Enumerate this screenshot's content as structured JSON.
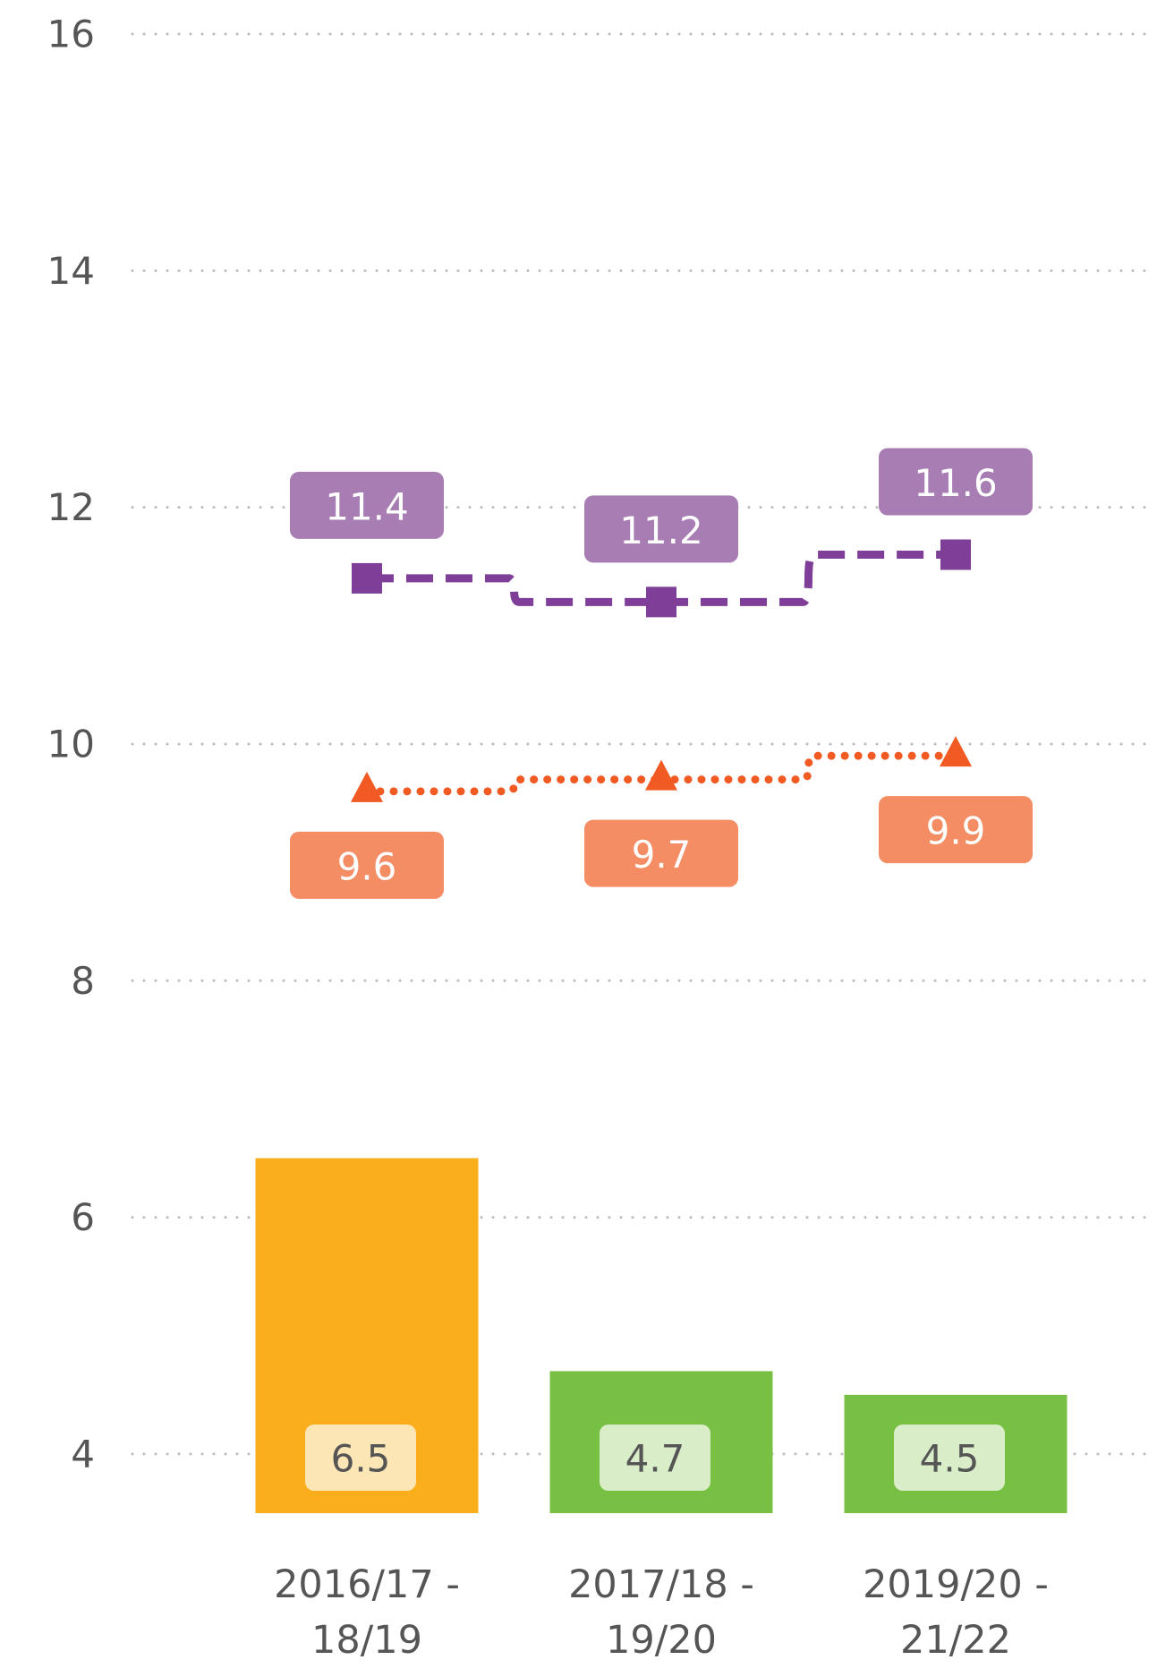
{
  "chart_data": {
    "type": "combo",
    "categories": [
      "2016/17 - 18/19",
      "2017/18 - 19/20",
      "2019/20 - 21/22"
    ],
    "ylim": [
      3.5,
      16
    ],
    "yticks": [
      4,
      6,
      8,
      10,
      12,
      14,
      16
    ],
    "grid": true,
    "series": [
      {
        "type": "bar",
        "colors": [
          "#fbae1c",
          "#77c043",
          "#77c043"
        ],
        "label_colors": [
          "#fde6b5",
          "#d9edc8"
        ],
        "values": [
          6.5,
          4.7,
          4.5
        ]
      },
      {
        "type": "line",
        "color": "#7f3f98",
        "label_color": "#a77db4",
        "marker": "square",
        "dash": "dashed",
        "label_position": "above",
        "values": [
          11.4,
          11.2,
          11.6
        ]
      },
      {
        "type": "line",
        "color": "#f15a22",
        "label_color": "#f48c64",
        "marker": "triangle",
        "dash": "dotted",
        "label_position": "below",
        "values": [
          9.6,
          9.7,
          9.9
        ]
      }
    ]
  }
}
